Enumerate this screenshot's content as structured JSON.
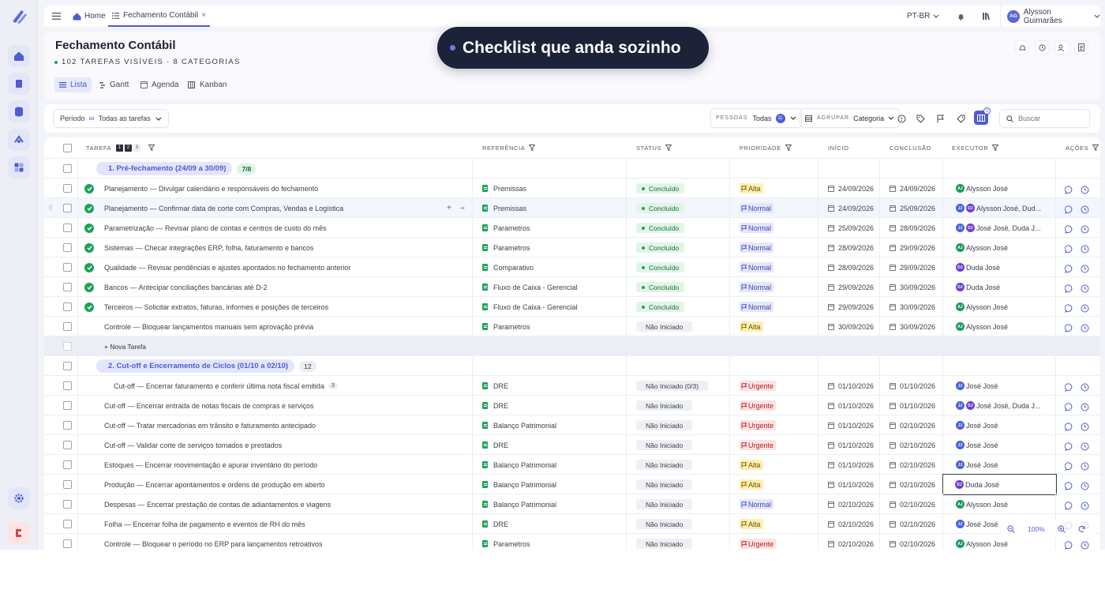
{
  "topbar": {
    "home": "Home",
    "active_tab": "Fechamento Contábil",
    "lang": "PT-BR",
    "user_initials": "AG",
    "user_name": "Alysson Guimarães"
  },
  "header": {
    "title": "Fechamento Contábil",
    "subtitle": "102 TAREFAS VISÍVEIS · 8 CATEGORIAS",
    "views": [
      "Lista",
      "Gantt",
      "Agenda",
      "Kanban"
    ]
  },
  "banner": {
    "text": "Checklist que anda sozinho"
  },
  "toolbar": {
    "period_label": "Período",
    "period_value": "Todas as tarefas",
    "people_label": "PESSOAS",
    "people_value": "Todas",
    "people_count": "11",
    "group_label": "AGRUPAR",
    "group_value": "Categoria",
    "columns_badge": "0",
    "search_placeholder": "Buscar"
  },
  "table": {
    "headers": {
      "task": "TAREFA",
      "levels": [
        "1",
        "2",
        "3"
      ],
      "ref": "REFERÊNCIA",
      "status": "STATUS",
      "priority": "PRIORIDADE",
      "start": "INÍCIO",
      "end": "CONCLUSÃO",
      "exec": "EXECUTOR",
      "actions": "AÇÕES"
    },
    "group1": {
      "label": "1. Pré-fechamento (24/09 a 30/09)",
      "count": "7/8"
    },
    "group2": {
      "label": "2. Cut-off e Encerramento de Ciclos (01/10 a 02/10)",
      "count": "12"
    },
    "new_task": "+ Nova Tarefa",
    "rows": [
      {
        "task": "Planejamento — Divulgar calendário e responsáveis do fechamento",
        "ref": "Premissas",
        "status": "Concluído",
        "priority": "Alta",
        "start": "24/09/2026",
        "end": "24/09/2026",
        "exec": "Alysson José"
      },
      {
        "task": "Planejamento — Confirmar data de corte com Compras, Vendas e Logística",
        "ref": "Premissas",
        "status": "Concluído",
        "priority": "Normal",
        "start": "24/09/2026",
        "end": "25/09/2026",
        "exec": "Alysson José, Dud..."
      },
      {
        "task": "Parametrização — Revisar plano de contas e centros de custo do mês",
        "ref": "Parametros",
        "status": "Concluído",
        "priority": "Normal",
        "start": "25/09/2026",
        "end": "28/09/2026",
        "exec": "José José, Duda J..."
      },
      {
        "task": "Sistemas — Checar integrações ERP, folha, faturamento e bancos",
        "ref": "Parametros",
        "status": "Concluído",
        "priority": "Normal",
        "start": "28/09/2026",
        "end": "29/09/2026",
        "exec": "Alysson José"
      },
      {
        "task": "Qualidade — Revisar pendências e ajustes apontados no fechamento anterior",
        "ref": "Comparativo",
        "status": "Concluído",
        "priority": "Normal",
        "start": "28/09/2026",
        "end": "29/09/2026",
        "exec": "Duda José"
      },
      {
        "task": "Bancos — Antecipar conciliações bancárias até D-2",
        "ref": "Fluxo de Caixa - Gerencial",
        "status": "Concluído",
        "priority": "Normal",
        "start": "29/09/2026",
        "end": "30/09/2026",
        "exec": "Duda José"
      },
      {
        "task": "Terceiros — Solicitar extratos, faturas, informes e posições de terceiros",
        "ref": "Fluxo de Caixa - Gerencial",
        "status": "Concluído",
        "priority": "Normal",
        "start": "29/09/2026",
        "end": "30/09/2026",
        "exec": "Alysson José"
      },
      {
        "task": "Controle — Bloquear lançamentos manuais sem aprovação prévia",
        "ref": "Parametros",
        "status": "Não Iniciado",
        "priority": "Alta",
        "start": "30/09/2026",
        "end": "30/09/2026",
        "exec": "Alysson José"
      },
      {
        "task": "Cut-off — Encerrar faturamento e conferir última nota fiscal emitida",
        "sub": "3",
        "ref": "DRE",
        "status": "Não Iniciado (0/3)",
        "priority": "Urgente",
        "start": "01/10/2026",
        "end": "01/10/2026",
        "exec": "José José"
      },
      {
        "task": "Cut-off — Encerrar entrada de notas fiscais de compras e serviços",
        "ref": "DRE",
        "status": "Não Iniciado",
        "priority": "Urgente",
        "start": "01/10/2026",
        "end": "01/10/2026",
        "exec": "José José, Duda J..."
      },
      {
        "task": "Cut-off — Tratar mercadorias em trânsito e faturamento antecipado",
        "ref": "Balanço Patrimonial",
        "status": "Não Iniciado",
        "priority": "Urgente",
        "start": "01/10/2026",
        "end": "02/10/2026",
        "exec": "José José"
      },
      {
        "task": "Cut-off — Validar corte de serviços tomados e prestados",
        "ref": "DRE",
        "status": "Não Iniciado",
        "priority": "Urgente",
        "start": "01/10/2026",
        "end": "02/10/2026",
        "exec": "José José"
      },
      {
        "task": "Estoques — Encerrar movimentação e apurar inventário do período",
        "ref": "Balanço Patrimonial",
        "status": "Não Iniciado",
        "priority": "Alta",
        "start": "01/10/2026",
        "end": "02/10/2026",
        "exec": "José José"
      },
      {
        "task": "Produção — Encerrar apontamentos e ordens de produção em aberto",
        "ref": "Balanço Patrimonial",
        "status": "Não Iniciado",
        "priority": "Alta",
        "start": "01/10/2026",
        "end": "02/10/2026",
        "exec": "Duda José"
      },
      {
        "task": "Despesas — Encerrar prestação de contas de adiantamentos e viagens",
        "ref": "Balanço Patrimonial",
        "status": "Não Iniciado",
        "priority": "Normal",
        "start": "02/10/2026",
        "end": "02/10/2026",
        "exec": "Alysson José"
      },
      {
        "task": "Folha — Encerrar folha de pagamento e eventos de RH do mês",
        "ref": "DRE",
        "status": "Não Iniciado",
        "priority": "Alta",
        "start": "02/10/2026",
        "end": "02/10/2026",
        "exec": "José José"
      },
      {
        "task": "Controle — Bloquear o período no ERP para lançamentos retroativos",
        "ref": "Parametros",
        "status": "Não Iniciado",
        "priority": "Urgente",
        "start": "02/10/2026",
        "end": "02/10/2026",
        "exec": "Alysson José"
      }
    ]
  },
  "avatars": {
    "aj": "AJ",
    "dj": "DJ",
    "jj": "JJ"
  },
  "zoom": "100%",
  "colors": {
    "accent": "#4f5bd5",
    "banner_bg": "#1c2238",
    "done": "#1ea15a"
  }
}
